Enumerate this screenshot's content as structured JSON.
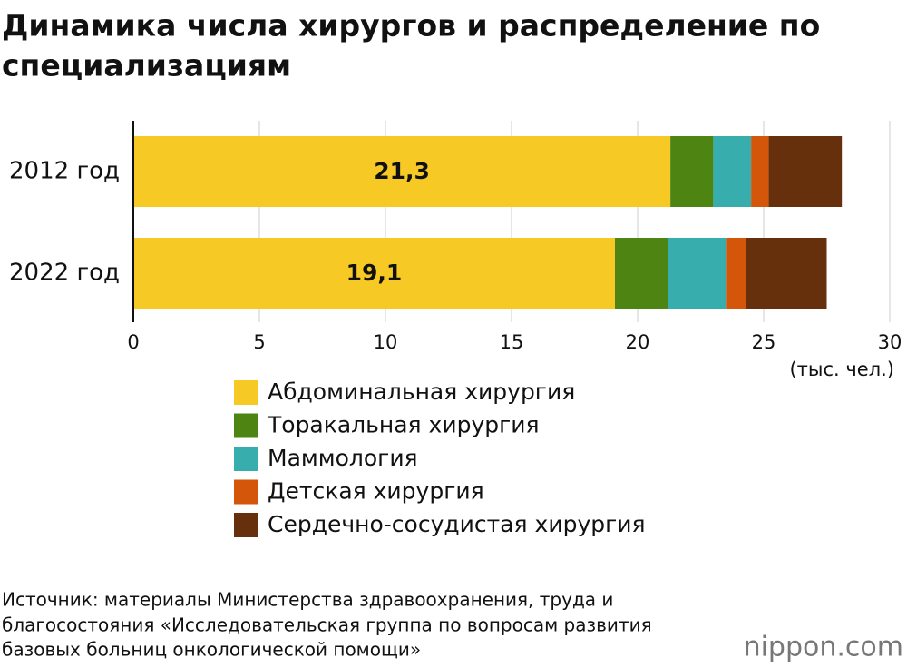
{
  "chart_data": {
    "type": "stacked_barh",
    "title": [
      "Динамика числа хирургов и распределение по",
      "специализациям"
    ],
    "categories": [
      "2012 год",
      "2022 год"
    ],
    "series": [
      {
        "name": "Абдоминальная хирургия",
        "color": "#f7c925",
        "values": [
          21.3,
          19.1
        ],
        "value_labels": [
          "21,3",
          "19,1"
        ]
      },
      {
        "name": "Торакальная хирургия",
        "color": "#4e8512",
        "values": [
          1.7,
          2.1
        ]
      },
      {
        "name": "Маммология",
        "color": "#38adad",
        "values": [
          1.5,
          2.3
        ]
      },
      {
        "name": "Детская хирургия",
        "color": "#d4560b",
        "values": [
          0.7,
          0.8
        ]
      },
      {
        "name": "Сердечно-сосудистая хирургия",
        "color": "#66300c",
        "values": [
          2.9,
          3.2
        ]
      }
    ],
    "xlim": [
      0,
      30
    ],
    "xticks": [
      0,
      5,
      10,
      15,
      20,
      25,
      30
    ],
    "x_unit": "(тыс. чел.)",
    "grid": true,
    "source": [
      "Источник: материалы Министерства здравоохранения, труда и",
      "благосостояния «Исследовательская группа по вопросам развития",
      "базовых больниц онкологической помощи»"
    ],
    "brand": "nippon.com"
  }
}
